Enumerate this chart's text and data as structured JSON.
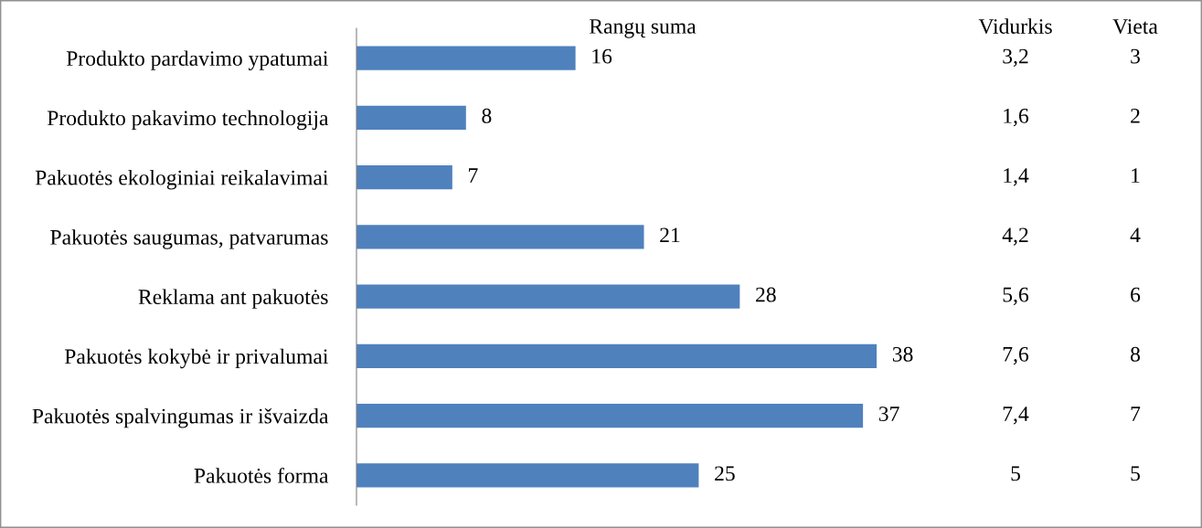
{
  "chart_data": [
    {
      "type": "bar",
      "orientation": "horizontal",
      "title": "Rangų suma",
      "categories": [
        "Produkto pardavimo ypatumai",
        "Produkto pakavimo technologija",
        "Pakuotės ekologiniai reikalavimai",
        "Pakuotės saugumas, patvarumas",
        "Reklama ant pakuotės",
        "Pakuotės kokybė ir privalumai",
        "Pakuotės spalvingumas ir išvaizda",
        "Pakuotės forma"
      ],
      "values": [
        16,
        8,
        7,
        21,
        28,
        38,
        37,
        25
      ],
      "color": "#4f81bd",
      "data_labels": true,
      "tick_labels": "y"
    },
    {
      "type": "other",
      "title": "Vidurkis",
      "annotations": [
        "3,2",
        "1,6",
        "1,4",
        "4,2",
        "5,6",
        "7,6",
        "7,4",
        "5"
      ]
    },
    {
      "type": "other",
      "title": "Vieta",
      "annotations": [
        "3",
        "2",
        "1",
        "4",
        "6",
        "8",
        "7",
        "5"
      ]
    }
  ]
}
